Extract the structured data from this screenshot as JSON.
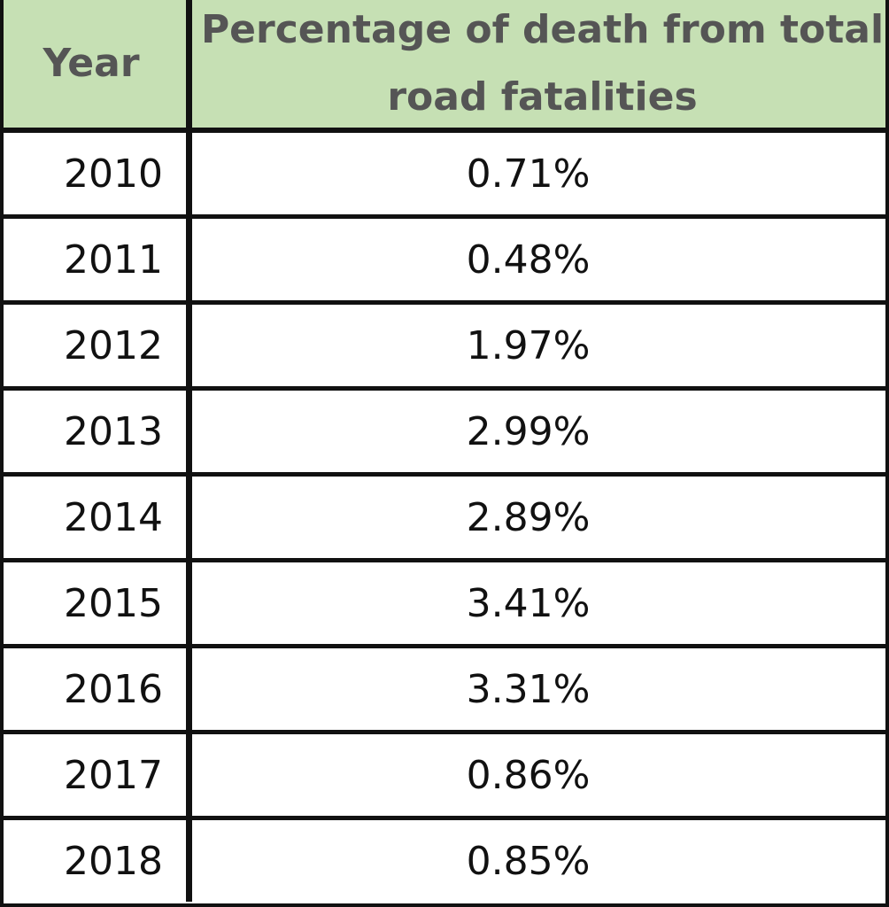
{
  "table": {
    "headers": {
      "year": "Year",
      "percentage": "Percentage of death from total road fatalities"
    },
    "rows": [
      {
        "year": "2010",
        "percentage": "0.71%"
      },
      {
        "year": "2011",
        "percentage": "0.48%"
      },
      {
        "year": "2012",
        "percentage": "1.97%"
      },
      {
        "year": "2013",
        "percentage": "2.99%"
      },
      {
        "year": "2014",
        "percentage": "2.89%"
      },
      {
        "year": "2015",
        "percentage": "3.41%"
      },
      {
        "year": "2016",
        "percentage": "3.31%"
      },
      {
        "year": "2017",
        "percentage": "0.86%"
      },
      {
        "year": "2018",
        "percentage": "0.85%"
      }
    ]
  },
  "colors": {
    "header_background": "#c6e0b4",
    "header_text": "#555555",
    "cell_text": "#111111",
    "grid_lines": "#111111"
  }
}
